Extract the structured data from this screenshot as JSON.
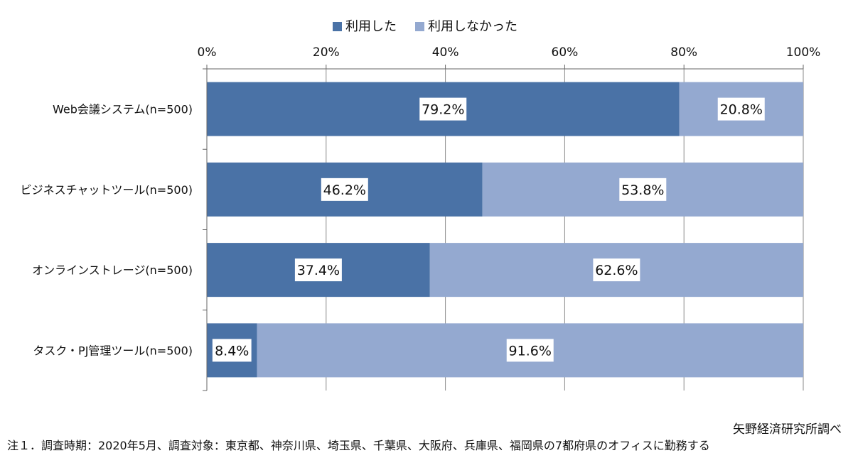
{
  "chart_data": {
    "type": "bar",
    "orientation": "horizontal",
    "stacked": true,
    "categories": [
      "Web会議システム(n=500)",
      "ビジネスチャットツール(n=500)",
      "オンラインストレージ(n=500)",
      "タスク・PJ管理ツール(n=500)"
    ],
    "series": [
      {
        "name": "利用した",
        "values": [
          79.2,
          46.2,
          37.4,
          8.4
        ],
        "labels": [
          "79.2%",
          "46.2%",
          "37.4%",
          "8.4%"
        ],
        "color": "#4a72a6"
      },
      {
        "name": "利用しなかった",
        "values": [
          20.8,
          53.8,
          62.6,
          91.6
        ],
        "labels": [
          "20.8%",
          "53.8%",
          "62.6%",
          "91.6%"
        ],
        "color": "#94a9d0"
      }
    ],
    "xlim": [
      0,
      100
    ],
    "x_ticks": [
      0,
      20,
      40,
      60,
      80,
      100
    ],
    "x_tick_labels": [
      "0%",
      "20%",
      "40%",
      "60%",
      "80%",
      "100%"
    ],
    "x_axis_position": "top",
    "legend_position": "top-center",
    "grid": true,
    "xlabel": "",
    "ylabel": "",
    "title": ""
  },
  "source": "矢野経済研究所調べ",
  "note": "注１．調査時期：2020年5月、調査対象：東京都、神奈川県、埼玉県、千葉県、大阪府、兵庫県、福岡県の7都府県のオフィスに勤務する"
}
